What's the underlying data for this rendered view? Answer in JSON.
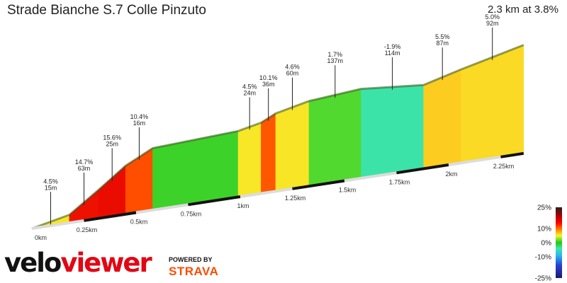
{
  "chart_data": {
    "type": "area",
    "title": "Strade Bianche S.7 Colle Pinzuto",
    "summary": "2.3 km at 3.8%",
    "xlabel": "",
    "ylabel": "",
    "xlim": [
      0,
      2.36
    ],
    "distance_ticks": [
      {
        "km": 0,
        "label": "0km"
      },
      {
        "km": 0.25,
        "label": "0.25km"
      },
      {
        "km": 0.5,
        "label": "0.5km"
      },
      {
        "km": 0.75,
        "label": "0.75km"
      },
      {
        "km": 1,
        "label": "1km"
      },
      {
        "km": 1.25,
        "label": "1.25km"
      },
      {
        "km": 1.5,
        "label": "1.5km"
      },
      {
        "km": 1.75,
        "label": "1.75km"
      },
      {
        "km": 2,
        "label": "2km"
      },
      {
        "km": 2.25,
        "label": "2.25km"
      }
    ],
    "segments": [
      {
        "from_km": 0.0,
        "to_km": 0.18,
        "grade": "4.5%",
        "length": "15m",
        "grade_value": 4.5
      },
      {
        "from_km": 0.18,
        "to_km": 0.32,
        "grade": "14.7%",
        "length": "63m",
        "grade_value": 14.7
      },
      {
        "from_km": 0.32,
        "to_km": 0.45,
        "grade": "15.6%",
        "length": "25m",
        "grade_value": 15.6
      },
      {
        "from_km": 0.45,
        "to_km": 0.58,
        "grade": "10.4%",
        "length": "16m",
        "grade_value": 10.4
      },
      {
        "from_km": 0.58,
        "to_km": 0.99,
        "grade": "",
        "length": "",
        "grade_value": 1.0
      },
      {
        "from_km": 0.99,
        "to_km": 1.1,
        "grade": "4.5%",
        "length": "24m",
        "grade_value": 4.5
      },
      {
        "from_km": 1.1,
        "to_km": 1.17,
        "grade": "10.1%",
        "length": "36m",
        "grade_value": 10.1
      },
      {
        "from_km": 1.17,
        "to_km": 1.33,
        "grade": "4.6%",
        "length": "60m",
        "grade_value": 4.6
      },
      {
        "from_km": 1.33,
        "to_km": 1.58,
        "grade": "1.7%",
        "length": "137m",
        "grade_value": 1.7
      },
      {
        "from_km": 1.58,
        "to_km": 1.88,
        "grade": "-1.9%",
        "length": "114m",
        "grade_value": -1.9
      },
      {
        "from_km": 1.88,
        "to_km": 2.06,
        "grade": "5.5%",
        "length": "87m",
        "grade_value": 5.5
      },
      {
        "from_km": 2.06,
        "to_km": 2.36,
        "grade": "5.0%",
        "length": "92m",
        "grade_value": 5.0
      }
    ],
    "legend": {
      "labels": [
        "25%",
        "10%",
        "0%",
        "-10%",
        "-25%"
      ],
      "values": [
        25,
        10,
        0,
        -10,
        -25
      ]
    }
  },
  "branding": {
    "logo_text_a": "velo",
    "logo_text_b": "viewer",
    "powered_by": "POWERED BY",
    "partner": "STRAVA"
  }
}
